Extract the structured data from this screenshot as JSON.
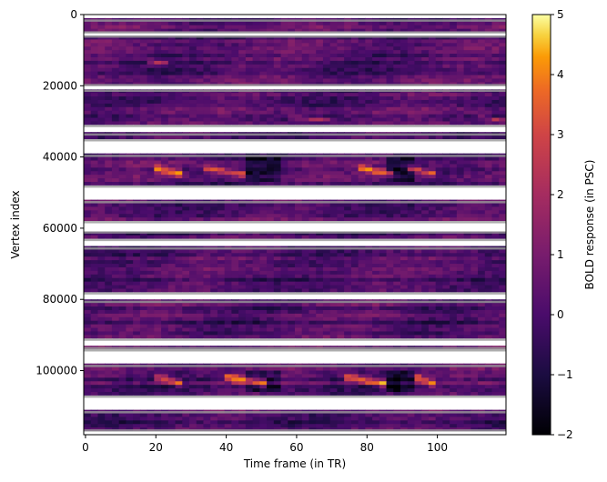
{
  "chart_data": {
    "type": "heatmap",
    "title": "",
    "xlabel": "Time frame (in TR)",
    "ylabel": "Vertex index",
    "xlim": [
      0,
      119
    ],
    "ylim": [
      118000,
      0
    ],
    "xticks": [
      0,
      20,
      40,
      60,
      80,
      100
    ],
    "xtick_labels": [
      "0",
      "20",
      "40",
      "60",
      "80",
      "100"
    ],
    "yticks": [
      0,
      20000,
      40000,
      60000,
      80000,
      100000
    ],
    "ytick_labels": [
      "0",
      "20000",
      "40000",
      "60000",
      "80000",
      "100000"
    ],
    "colorbar": {
      "label": "BOLD response (in PSC)",
      "colormap": "inferno",
      "vmin": -2,
      "vmax": 5,
      "ticks": [
        -2,
        -1,
        0,
        1,
        2,
        3,
        4,
        5
      ],
      "tick_labels": [
        "−2",
        "−1",
        "0",
        "1",
        "2",
        "3",
        "4",
        "5"
      ]
    },
    "missing_vertex_bands": [
      [
        0,
        1500
      ],
      [
        5200,
        6000
      ],
      [
        20000,
        21200
      ],
      [
        31500,
        33500
      ],
      [
        35500,
        39500
      ],
      [
        48500,
        52500
      ],
      [
        58500,
        61000
      ],
      [
        63500,
        65500
      ],
      [
        78500,
        80500
      ],
      [
        91500,
        93500
      ],
      [
        94500,
        98500
      ],
      [
        107500,
        111500
      ],
      [
        117000,
        118000
      ]
    ],
    "activation_events": [
      {
        "vertex_range": [
          42000,
          46000
        ],
        "frames": [
          20,
          28
        ],
        "peak_psc": 4.5
      },
      {
        "vertex_range": [
          42000,
          46000
        ],
        "frames": [
          34,
          46
        ],
        "peak_psc": 4.0
      },
      {
        "vertex_range": [
          42000,
          46000
        ],
        "frames": [
          78,
          88
        ],
        "peak_psc": 4.5
      },
      {
        "vertex_range": [
          42000,
          46000
        ],
        "frames": [
          92,
          100
        ],
        "peak_psc": 4.0
      },
      {
        "vertex_range": [
          100500,
          105000
        ],
        "frames": [
          20,
          28
        ],
        "peak_psc": 4.0
      },
      {
        "vertex_range": [
          100500,
          105000
        ],
        "frames": [
          40,
          52
        ],
        "peak_psc": 4.5
      },
      {
        "vertex_range": [
          100500,
          105000
        ],
        "frames": [
          74,
          86
        ],
        "peak_psc": 4.5
      },
      {
        "vertex_range": [
          100500,
          105000
        ],
        "frames": [
          94,
          100
        ],
        "peak_psc": 4.0
      },
      {
        "vertex_range": [
          12500,
          14500
        ],
        "frames": [
          19,
          24
        ],
        "peak_psc": 3.5
      },
      {
        "vertex_range": [
          28000,
          30500
        ],
        "frames": [
          58,
          70
        ],
        "peak_psc": 2.5
      },
      {
        "vertex_range": [
          28000,
          30500
        ],
        "frames": [
          112,
          119
        ],
        "peak_psc": 2.5
      }
    ]
  }
}
